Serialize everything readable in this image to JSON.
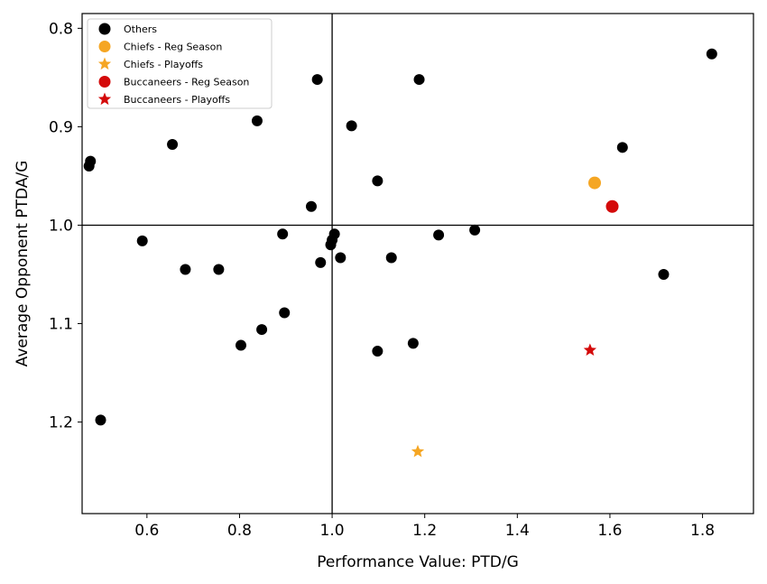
{
  "chart_data": {
    "type": "scatter",
    "xlabel": "Performance Value: PTD/G",
    "ylabel": "Average Opponent PTDA/G",
    "xlim": [
      0.46,
      1.91
    ],
    "ylim": [
      1.293,
      0.785
    ],
    "y_inverted": true,
    "x_ticks": [
      "0.6",
      "0.8",
      "1.0",
      "1.2",
      "1.4",
      "1.6",
      "1.8"
    ],
    "y_ticks": [
      "0.8",
      "0.9",
      "1.0",
      "1.1",
      "1.2"
    ],
    "reference_lines": {
      "x": 1.0,
      "y": 1.0
    },
    "grid": false,
    "legend_position": "top-left",
    "series": [
      {
        "name": "Others",
        "marker": "circle",
        "color": "#000000",
        "points": [
          [
            1.82,
            0.826
          ],
          [
            0.968,
            0.852
          ],
          [
            1.188,
            0.852
          ],
          [
            0.838,
            0.894
          ],
          [
            1.042,
            0.899
          ],
          [
            0.655,
            0.918
          ],
          [
            1.627,
            0.921
          ],
          [
            0.478,
            0.935
          ],
          [
            0.475,
            0.94
          ],
          [
            1.098,
            0.955
          ],
          [
            0.955,
            0.981
          ],
          [
            1.005,
            1.009
          ],
          [
            0.893,
            1.009
          ],
          [
            1.23,
            1.01
          ],
          [
            1.308,
            1.005
          ],
          [
            1.0,
            1.015
          ],
          [
            0.997,
            1.02
          ],
          [
            0.59,
            1.016
          ],
          [
            0.975,
            1.038
          ],
          [
            1.018,
            1.033
          ],
          [
            1.128,
            1.033
          ],
          [
            0.683,
            1.045
          ],
          [
            0.755,
            1.045
          ],
          [
            1.716,
            1.05
          ],
          [
            0.897,
            1.089
          ],
          [
            0.848,
            1.106
          ],
          [
            0.803,
            1.122
          ],
          [
            1.175,
            1.12
          ],
          [
            1.098,
            1.128
          ],
          [
            0.5,
            1.198
          ]
        ]
      },
      {
        "name": "Chiefs - Reg Season",
        "marker": "circle",
        "color": "#F5A623",
        "points": [
          [
            1.567,
            0.957
          ]
        ]
      },
      {
        "name": "Chiefs - Playoffs",
        "marker": "star",
        "color": "#F5A623",
        "points": [
          [
            1.185,
            1.23
          ]
        ]
      },
      {
        "name": "Buccaneers - Reg Season",
        "marker": "circle",
        "color": "#D40A0A",
        "points": [
          [
            1.605,
            0.981
          ]
        ]
      },
      {
        "name": "Buccaneers - Playoffs",
        "marker": "star",
        "color": "#D40A0A",
        "points": [
          [
            1.557,
            1.127
          ]
        ]
      }
    ]
  }
}
